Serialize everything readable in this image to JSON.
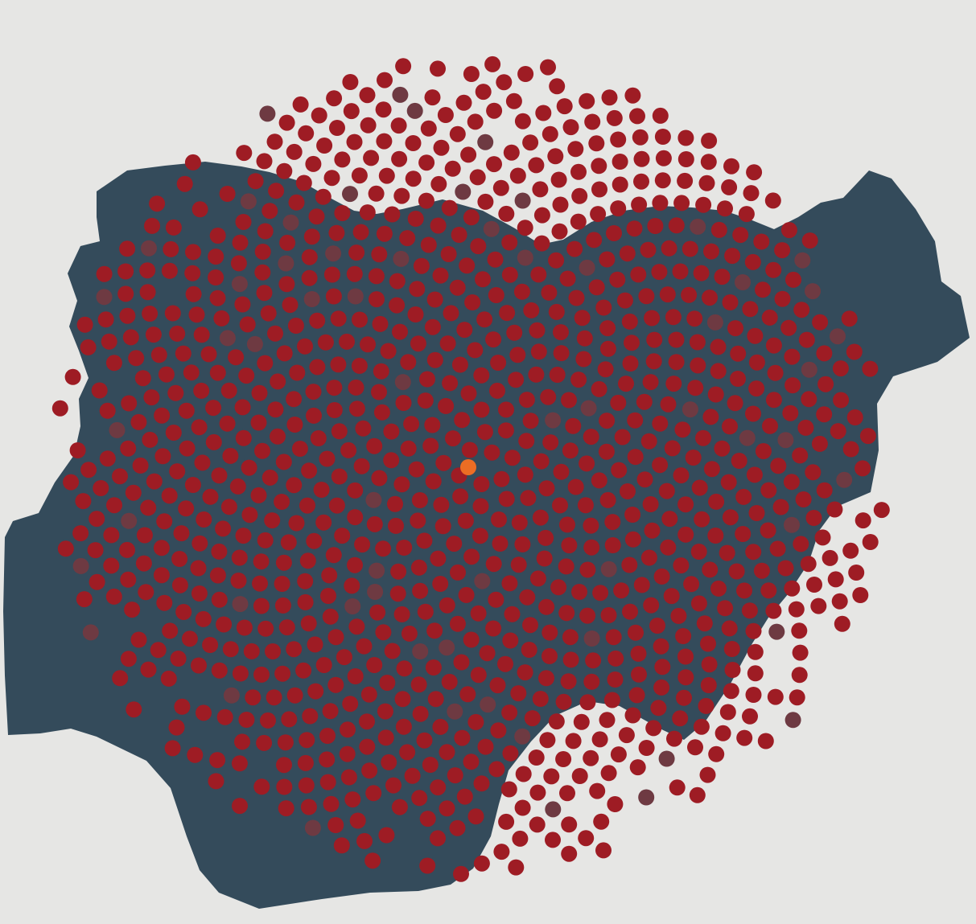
{
  "map": {
    "background_color": "#e6e6e4",
    "region_color": "#344b5b",
    "colors": {
      "standard_dot": "#9e1c24",
      "muted_dot": "#6e3a42",
      "highlight_dot": "#c98e7a",
      "highlight_dot_strong": "#b8705a",
      "center_dot": "#ec6d24"
    },
    "dot_counts": {
      "spiral_dots": 1100
    }
  }
}
